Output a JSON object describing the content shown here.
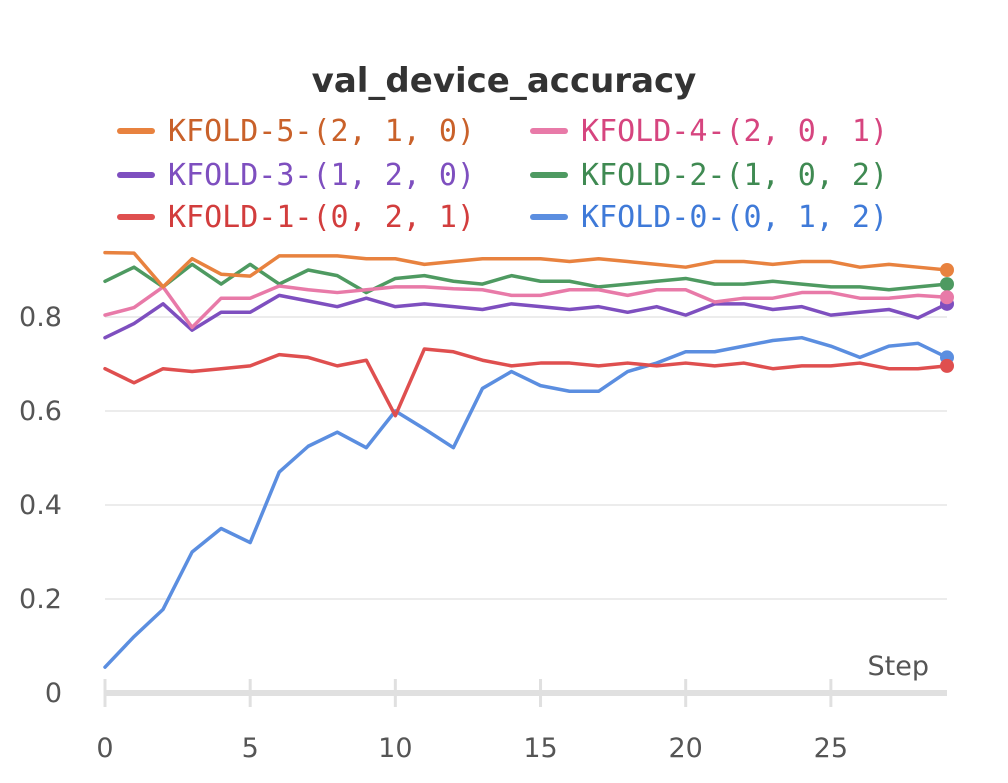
{
  "chart_data": {
    "type": "line",
    "title": "val_device_accuracy",
    "xlabel": "Step",
    "ylabel": "",
    "xlim": [
      0,
      29
    ],
    "ylim": [
      0,
      0.95
    ],
    "x_ticks": [
      0,
      5,
      10,
      15,
      20,
      25
    ],
    "x_tick_labels": [
      "0",
      "5",
      "10",
      "15",
      "20",
      "25"
    ],
    "y_ticks": [
      0,
      0.2,
      0.4,
      0.6,
      0.8
    ],
    "y_tick_labels": [
      "0",
      "0.2",
      "0.4",
      "0.6",
      "0.8"
    ],
    "grid": "horizontal",
    "legend_position": "top",
    "x": [
      0,
      1,
      2,
      3,
      4,
      5,
      6,
      7,
      8,
      9,
      10,
      11,
      12,
      13,
      14,
      15,
      16,
      17,
      18,
      19,
      20,
      21,
      22,
      23,
      24,
      25,
      26,
      27,
      28,
      29
    ],
    "series": [
      {
        "name": "KFOLD-5-(2, 1, 0)",
        "color": "#e8823f",
        "text_color": "#c9612a",
        "values": [
          0.937,
          0.936,
          0.864,
          0.924,
          0.891,
          0.887,
          0.93,
          0.93,
          0.93,
          0.924,
          0.924,
          0.912,
          0.918,
          0.924,
          0.924,
          0.924,
          0.918,
          0.924,
          0.918,
          0.912,
          0.906,
          0.918,
          0.918,
          0.912,
          0.918,
          0.918,
          0.906,
          0.912,
          0.906,
          0.9
        ]
      },
      {
        "name": "KFOLD-4-(2, 0, 1)",
        "color": "#e87aa8",
        "text_color": "#d6457f",
        "values": [
          0.804,
          0.82,
          0.864,
          0.778,
          0.84,
          0.84,
          0.866,
          0.858,
          0.852,
          0.858,
          0.864,
          0.864,
          0.86,
          0.858,
          0.846,
          0.846,
          0.858,
          0.858,
          0.846,
          0.858,
          0.858,
          0.832,
          0.84,
          0.84,
          0.852,
          0.852,
          0.84,
          0.84,
          0.846,
          0.842
        ]
      },
      {
        "name": "KFOLD-3-(1, 2, 0)",
        "color": "#7e4fbf",
        "text_color": "#7e4fbf",
        "values": [
          0.756,
          0.786,
          0.828,
          0.772,
          0.81,
          0.81,
          0.846,
          0.834,
          0.822,
          0.84,
          0.822,
          0.828,
          0.822,
          0.816,
          0.828,
          0.822,
          0.816,
          0.822,
          0.81,
          0.822,
          0.804,
          0.828,
          0.828,
          0.816,
          0.822,
          0.804,
          0.81,
          0.816,
          0.798,
          0.828
        ]
      },
      {
        "name": "KFOLD-2-(1, 0, 2)",
        "color": "#4e9a61",
        "text_color": "#3f8a52",
        "values": [
          0.876,
          0.906,
          0.864,
          0.912,
          0.87,
          0.912,
          0.87,
          0.9,
          0.888,
          0.852,
          0.882,
          0.888,
          0.876,
          0.87,
          0.888,
          0.876,
          0.876,
          0.864,
          0.87,
          0.876,
          0.882,
          0.87,
          0.87,
          0.876,
          0.87,
          0.864,
          0.864,
          0.858,
          0.864,
          0.87
        ]
      },
      {
        "name": "KFOLD-1-(0, 2, 1)",
        "color": "#df4f4f",
        "text_color": "#d23d3d",
        "values": [
          0.69,
          0.66,
          0.69,
          0.684,
          0.69,
          0.696,
          0.72,
          0.714,
          0.696,
          0.708,
          0.59,
          0.732,
          0.726,
          0.708,
          0.696,
          0.702,
          0.702,
          0.696,
          0.702,
          0.696,
          0.702,
          0.696,
          0.702,
          0.69,
          0.696,
          0.696,
          0.702,
          0.69,
          0.69,
          0.696
        ]
      },
      {
        "name": "KFOLD-0-(0, 1, 2)",
        "color": "#5b8ee0",
        "text_color": "#3f7ad8",
        "values": [
          0.055,
          0.12,
          0.178,
          0.3,
          0.35,
          0.32,
          0.47,
          0.525,
          0.555,
          0.522,
          0.6,
          0.562,
          0.522,
          0.648,
          0.684,
          0.654,
          0.642,
          0.642,
          0.684,
          0.702,
          0.726,
          0.726,
          0.738,
          0.75,
          0.756,
          0.738,
          0.714,
          0.738,
          0.744,
          0.714
        ]
      }
    ]
  }
}
